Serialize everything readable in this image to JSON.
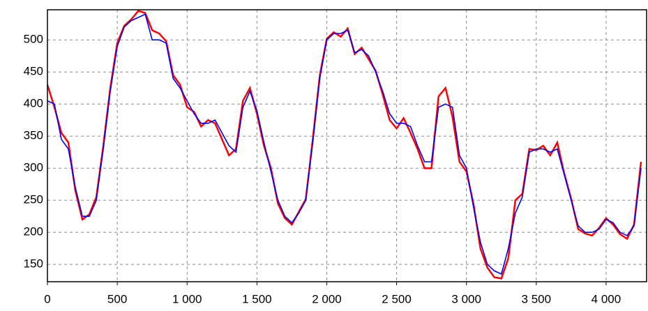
{
  "chart_data": {
    "type": "line",
    "x": [
      0,
      50,
      100,
      150,
      200,
      250,
      300,
      350,
      400,
      450,
      500,
      550,
      600,
      650,
      700,
      750,
      800,
      850,
      900,
      950,
      1000,
      1050,
      1100,
      1150,
      1200,
      1250,
      1300,
      1350,
      1400,
      1450,
      1500,
      1550,
      1600,
      1650,
      1700,
      1750,
      1800,
      1850,
      1900,
      1950,
      2000,
      2050,
      2100,
      2150,
      2200,
      2250,
      2300,
      2350,
      2400,
      2450,
      2500,
      2550,
      2600,
      2650,
      2700,
      2750,
      2800,
      2850,
      2900,
      2950,
      3000,
      3050,
      3100,
      3150,
      3200,
      3250,
      3300,
      3350,
      3400,
      3450,
      3500,
      3550,
      3600,
      3650,
      3700,
      3750,
      3800,
      3850,
      3900,
      3950,
      4000,
      4050,
      4100,
      4150,
      4200,
      4250
    ],
    "series": [
      {
        "color": "#ff0000",
        "values": [
          430,
          395,
          355,
          340,
          265,
          220,
          228,
          255,
          335,
          425,
          495,
          522,
          532,
          545,
          542,
          515,
          510,
          498,
          445,
          430,
          395,
          388,
          365,
          375,
          370,
          345,
          320,
          330,
          405,
          425,
          385,
          335,
          300,
          245,
          222,
          212,
          232,
          252,
          345,
          445,
          502,
          512,
          505,
          518,
          478,
          488,
          470,
          452,
          415,
          375,
          362,
          378,
          355,
          330,
          300,
          300,
          412,
          425,
          380,
          310,
          295,
          245,
          175,
          145,
          130,
          128,
          160,
          250,
          260,
          330,
          328,
          335,
          320,
          340,
          292,
          252,
          205,
          198,
          195,
          207,
          222,
          212,
          197,
          190,
          212,
          310
        ]
      },
      {
        "color": "#0000ff",
        "values": [
          405,
          400,
          345,
          330,
          270,
          225,
          225,
          250,
          330,
          420,
          490,
          520,
          530,
          535,
          540,
          500,
          500,
          495,
          440,
          425,
          405,
          385,
          370,
          370,
          375,
          355,
          335,
          325,
          395,
          420,
          390,
          340,
          295,
          250,
          225,
          215,
          230,
          250,
          340,
          440,
          500,
          510,
          510,
          515,
          480,
          485,
          475,
          450,
          420,
          385,
          370,
          370,
          365,
          335,
          310,
          310,
          395,
          400,
          395,
          320,
          300,
          240,
          185,
          150,
          140,
          135,
          175,
          230,
          255,
          325,
          330,
          330,
          325,
          330,
          290,
          250,
          210,
          200,
          200,
          205,
          220,
          215,
          200,
          195,
          210,
          300
        ]
      }
    ],
    "xlim": [
      0,
      4290
    ],
    "ylim": [
      123,
      547
    ],
    "xticks": [
      0,
      500,
      {
        "value": 1000,
        "label": "1 000"
      },
      {
        "value": 1500,
        "label": "1 500"
      },
      {
        "value": 2000,
        "label": "2 000"
      },
      {
        "value": 2500,
        "label": "2 500"
      },
      {
        "value": 3000,
        "label": "3 000"
      },
      {
        "value": 3500,
        "label": "3 500"
      },
      {
        "value": 4000,
        "label": "4 000"
      }
    ],
    "yticks": [
      150,
      200,
      250,
      300,
      350,
      400,
      450,
      500
    ],
    "grid": true
  }
}
